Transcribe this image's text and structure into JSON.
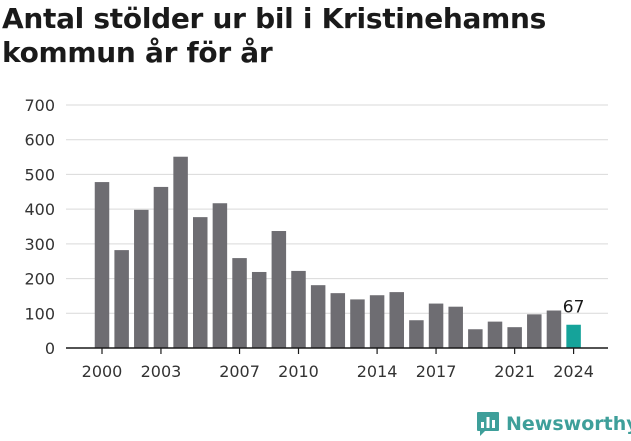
{
  "chart_data": {
    "type": "bar",
    "title": "Antal stölder ur bil i Kristinehamns kommun år för år",
    "categories": [
      "2000",
      "2001",
      "2002",
      "2003",
      "2004",
      "2005",
      "2006",
      "2007",
      "2008",
      "2009",
      "2010",
      "2011",
      "2012",
      "2013",
      "2014",
      "2015",
      "2016",
      "2017",
      "2018",
      "2019",
      "2020",
      "2021",
      "2022",
      "2023",
      "2024"
    ],
    "values": [
      478,
      282,
      398,
      464,
      551,
      377,
      417,
      259,
      219,
      337,
      222,
      181,
      158,
      140,
      152,
      161,
      80,
      128,
      119,
      54,
      76,
      60,
      97,
      108,
      67
    ],
    "x_tick_labels": [
      "2000",
      "2003",
      "2007",
      "2010",
      "2014",
      "2017",
      "2021",
      "2024"
    ],
    "y_ticks": [
      0,
      100,
      200,
      300,
      400,
      500,
      600,
      700
    ],
    "ylim": [
      0,
      700
    ],
    "grid": true,
    "highlight": {
      "category": "2024",
      "label": "67"
    },
    "colors": {
      "bar": "#6e6d72",
      "highlight": "#15a39a",
      "grid": "#d9d9d9",
      "axis": "#1a1a1a"
    }
  },
  "branding": {
    "logo_text": "Newsworthy",
    "logo_icon": "bar-chart-badge-icon",
    "logo_color": "#3e9f9a"
  }
}
